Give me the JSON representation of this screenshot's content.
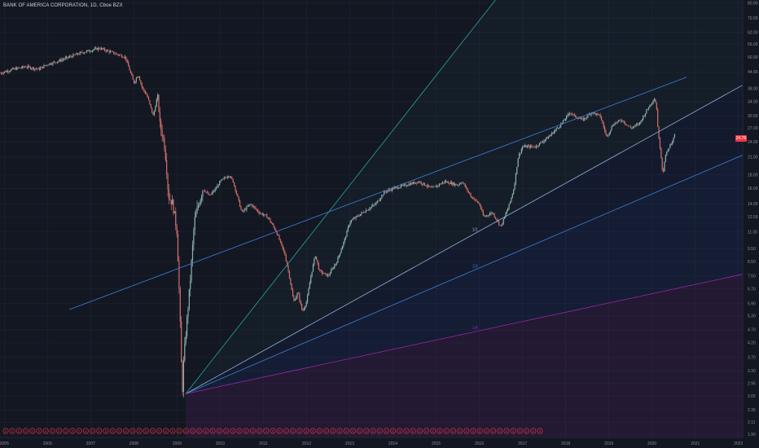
{
  "header": {
    "title": "BANK OF AMERICA CORPORATION, 1D, Cboe BZX",
    "last_price": "24.76"
  },
  "colors": {
    "background": "#131722",
    "grid": "#1f2433",
    "candle_up": "#8fb2ae",
    "candle_down": "#d5706b",
    "trend_blue": "#3d7fd8",
    "fan_light": "#8fb0d6",
    "fan_teal": "#26a69a",
    "fan_purple": "#9c27b0",
    "price_tag": "#f23645"
  },
  "chart_data": {
    "type": "line",
    "scale": "log",
    "x_ticks": [
      "2005",
      "2006",
      "2007",
      "2008",
      "2009",
      "2010",
      "2011",
      "2012",
      "2013",
      "2014",
      "2015",
      "2016",
      "2017",
      "2018",
      "2019",
      "2020",
      "2021",
      "2022"
    ],
    "y_ticks": [
      "80.00",
      "70.00",
      "62.00",
      "56.00",
      "50.00",
      "44.00",
      "38.00",
      "34.00",
      "30.00",
      "27.00",
      "24.00",
      "21.00",
      "18.00",
      "16.00",
      "14.00",
      "12.50",
      "11.00",
      "9.50",
      "8.50",
      "7.50",
      "6.70",
      "5.90",
      "5.30",
      "4.70",
      "4.20",
      "3.70",
      "3.30",
      "2.95",
      "2.65",
      "2.35",
      "2.11",
      "1.90"
    ],
    "ylim": [
      1.85,
      82
    ],
    "xlim": [
      2004.9,
      2022.1
    ],
    "series": [
      {
        "x": [
          2004.9,
          2005.2,
          2005.5,
          2005.8,
          2006.0,
          2006.2,
          2006.5,
          2006.8,
          2007.0,
          2007.2,
          2007.5,
          2007.8,
          2008.0,
          2008.1,
          2008.2,
          2008.3,
          2008.45,
          2008.55,
          2008.6,
          2008.7,
          2008.75,
          2008.8,
          2008.9,
          2009.0,
          2009.05,
          2009.08,
          2009.12,
          2009.15,
          2009.2,
          2009.3,
          2009.4,
          2009.5,
          2009.6,
          2009.75,
          2009.9,
          2010.0,
          2010.2,
          2010.3,
          2010.5,
          2010.7,
          2010.9,
          2011.1,
          2011.3,
          2011.5,
          2011.6,
          2011.7,
          2011.8,
          2011.9,
          2012.0,
          2012.1,
          2012.2,
          2012.3,
          2012.5,
          2012.7,
          2012.9,
          2013.0,
          2013.3,
          2013.6,
          2013.8,
          2014.0,
          2014.3,
          2014.6,
          2014.9,
          2015.2,
          2015.5,
          2015.6,
          2015.8,
          2016.0,
          2016.1,
          2016.3,
          2016.5,
          2016.7,
          2016.8,
          2016.9,
          2017.0,
          2017.3,
          2017.6,
          2017.9,
          2018.1,
          2018.2,
          2018.4,
          2018.6,
          2018.8,
          2018.95,
          2019.1,
          2019.3,
          2019.5,
          2019.7,
          2019.9,
          2020.05,
          2020.1,
          2020.15,
          2020.2,
          2020.25,
          2020.3,
          2020.4,
          2020.5,
          2020.55
        ],
        "values": [
          43.5,
          45,
          46,
          45,
          47,
          48,
          50,
          52,
          53,
          54,
          52,
          50,
          40,
          43,
          38,
          36,
          30,
          36,
          28,
          24,
          20,
          15,
          14,
          11,
          6.5,
          4.5,
          2.7,
          3.5,
          4.5,
          7,
          12,
          14,
          16,
          15,
          16,
          17,
          18,
          17,
          13,
          14,
          13,
          12.5,
          11,
          9,
          7.5,
          6,
          6.5,
          5.5,
          6,
          7.5,
          9,
          7.8,
          7.5,
          8.5,
          10.5,
          12,
          13,
          14,
          15.5,
          16,
          16.5,
          17,
          16,
          17,
          16.5,
          17,
          15,
          14,
          12.5,
          13,
          11.5,
          14,
          16,
          21,
          23,
          23,
          25,
          28,
          31,
          30,
          29,
          31,
          30,
          25,
          28,
          29,
          27,
          28,
          32,
          35,
          33,
          25,
          22,
          18,
          21,
          23,
          24.76,
          27
        ]
      }
    ],
    "annotations": [
      "1/1",
      "1/3",
      "1/4"
    ],
    "grid": true,
    "price_axis": "right",
    "events_row": "bottom"
  }
}
